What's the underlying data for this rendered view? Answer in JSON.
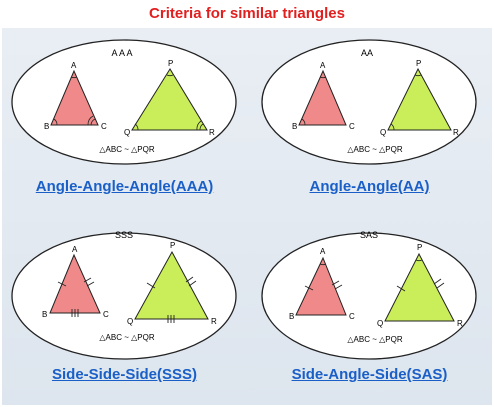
{
  "title": "Criteria for similar triangles",
  "quadrants": [
    {
      "heading": "A A A",
      "link": "Angle-Angle-Angle(AAA)",
      "similarity": "△ABC ~ △PQR",
      "labels": {
        "a": "A",
        "b": "B",
        "c": "C",
        "p": "P",
        "q": "Q",
        "r": "R"
      }
    },
    {
      "heading": "AA",
      "link": "Angle-Angle(AA)",
      "similarity": "△ABC ~ △PQR",
      "labels": {
        "a": "A",
        "b": "B",
        "c": "C",
        "p": "P",
        "q": "Q",
        "r": "R"
      }
    },
    {
      "heading": "SSS",
      "link": "Side-Side-Side(SSS)",
      "similarity": "△ABC ~ △PQR",
      "labels": {
        "a": "A",
        "b": "B",
        "c": "C",
        "p": "P",
        "q": "Q",
        "r": "R"
      }
    },
    {
      "heading": "SAS",
      "link": "Side-Angle-Side(SAS)",
      "similarity": "△ABC ~ △PQR",
      "labels": {
        "a": "A",
        "b": "B",
        "c": "C",
        "p": "P",
        "q": "Q",
        "r": "R"
      }
    }
  ],
  "colors": {
    "title": "#e21f1f",
    "link": "#1a5fc8",
    "small_triangle": "#f08a8a",
    "large_triangle": "#c9ee5a",
    "panel": "#e4eaf1"
  }
}
